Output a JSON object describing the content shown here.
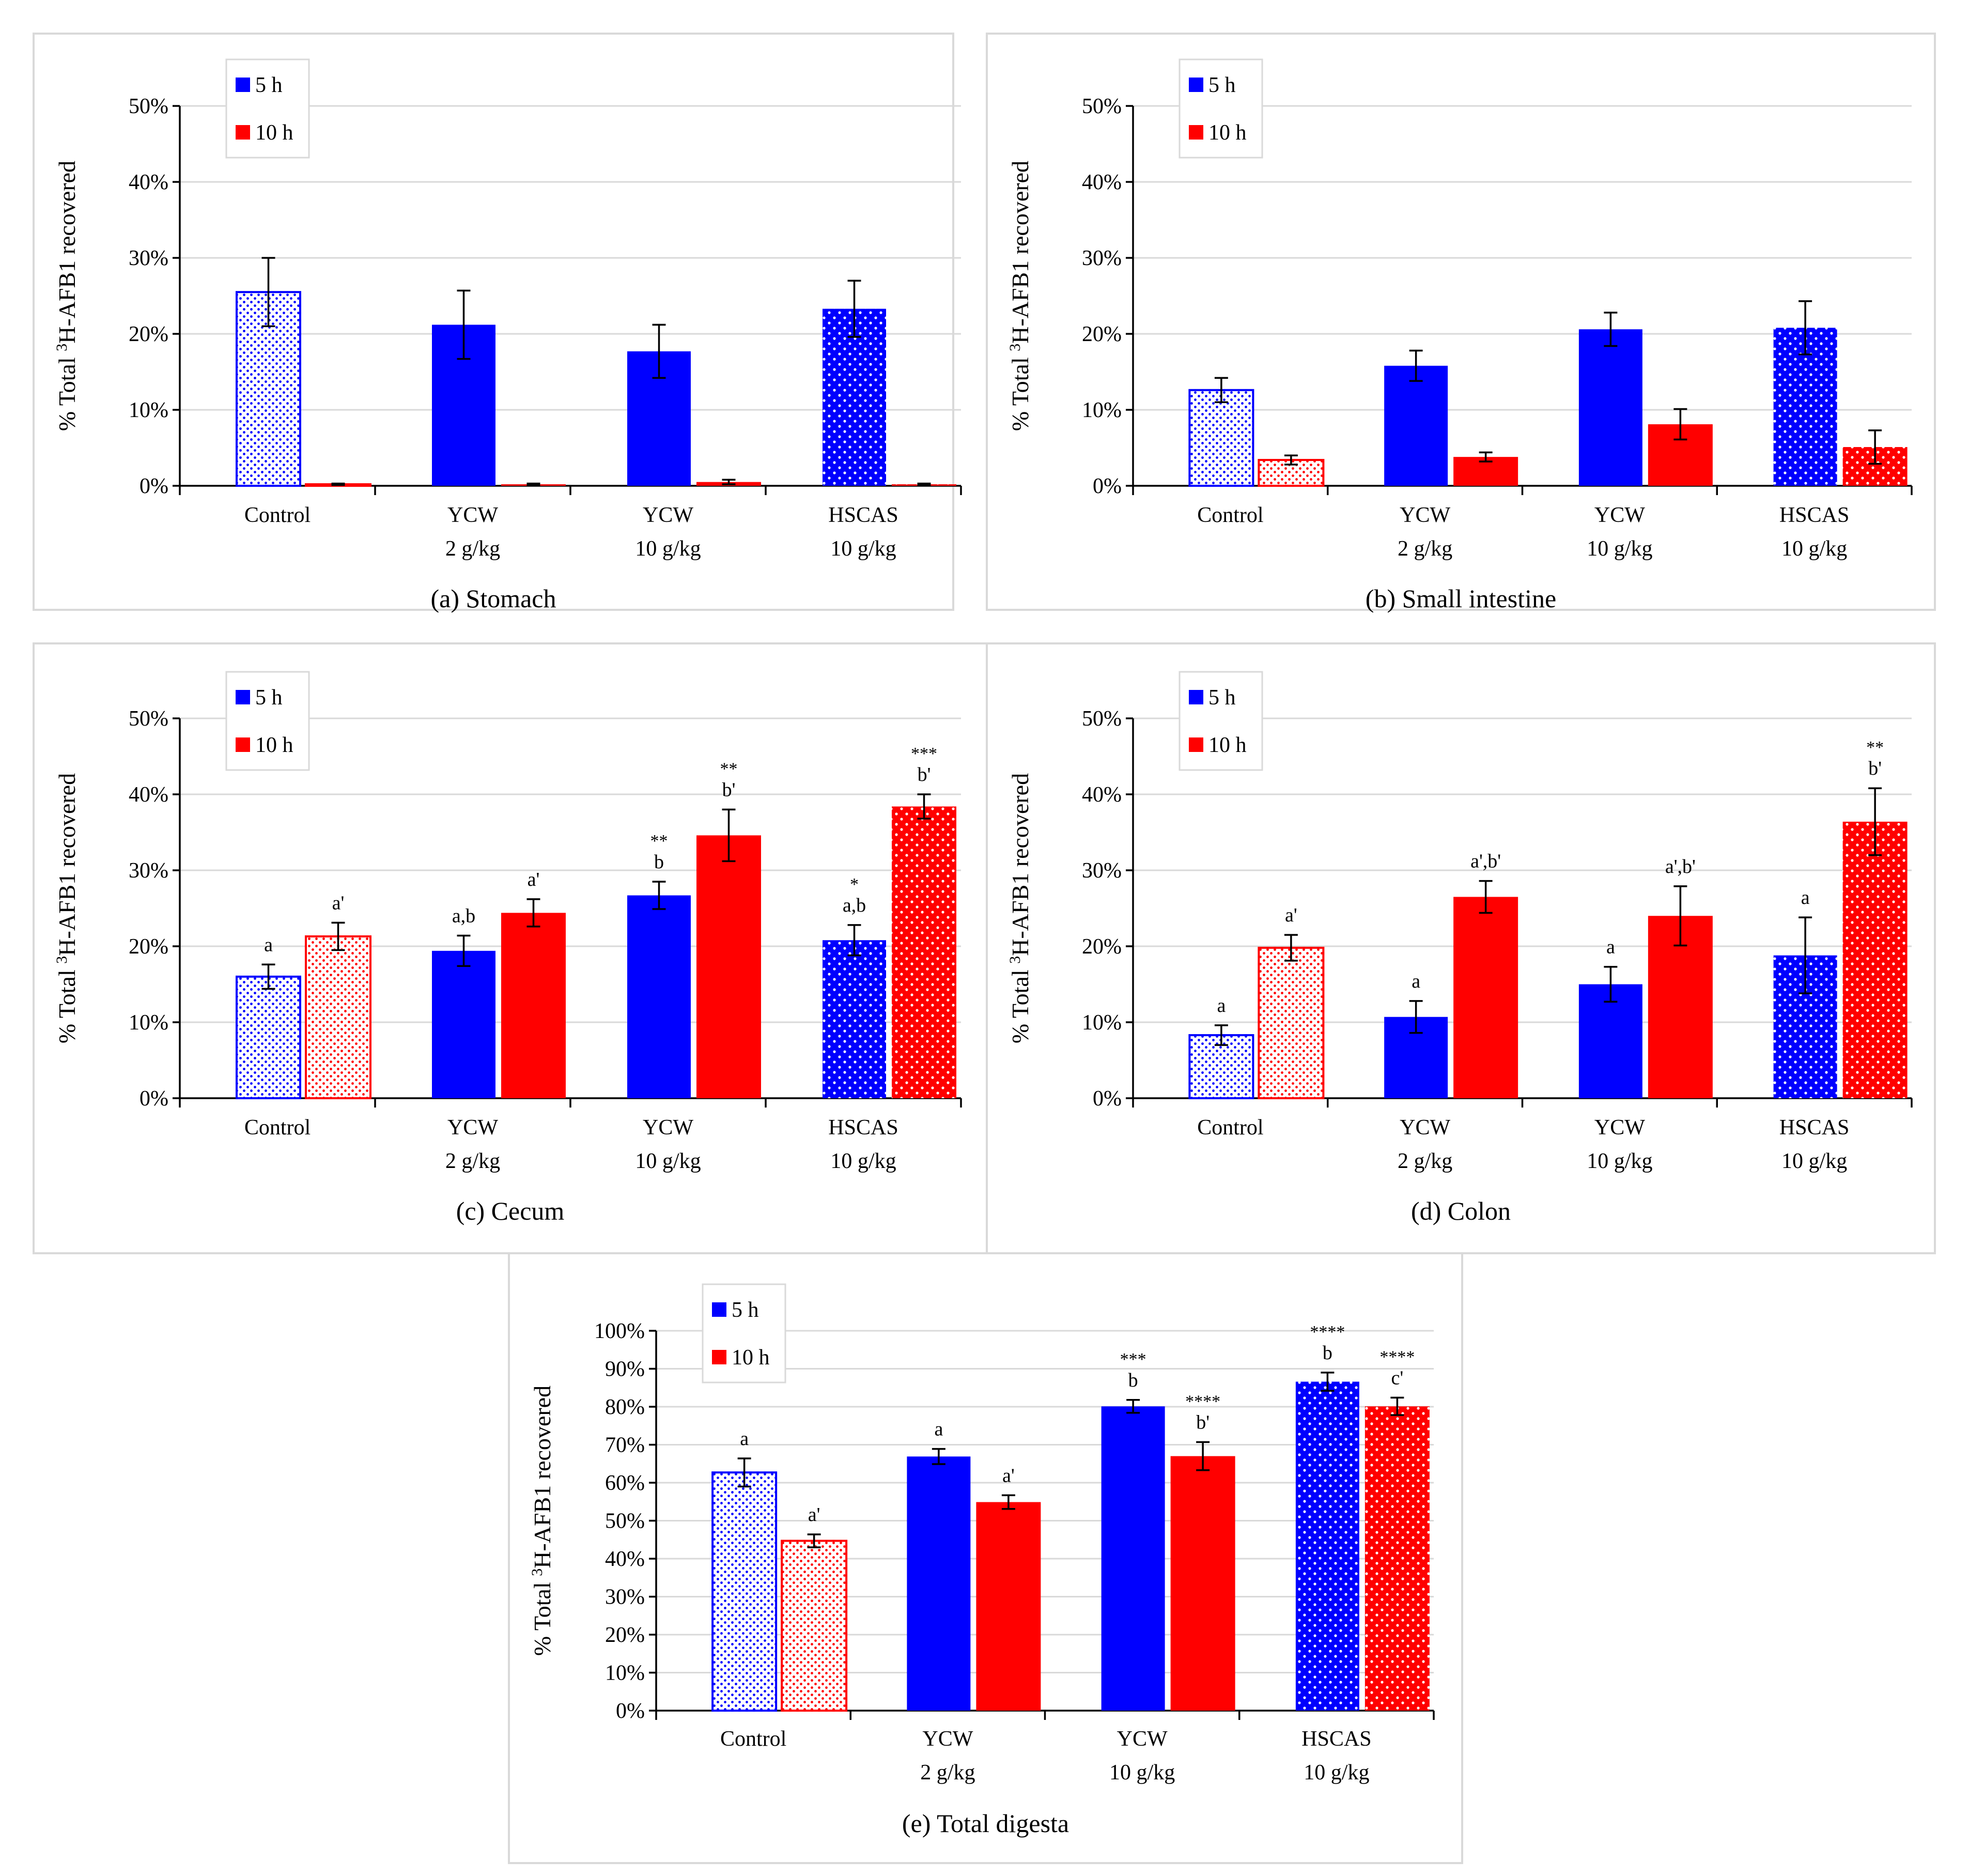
{
  "colors": {
    "5h": "#0000ff",
    "10h": "#ff0000",
    "grid": "#d9d9d9",
    "frame": "#d9d9d9"
  },
  "chart_data": [
    {
      "type": "bar",
      "title": "(a) Stomach",
      "ylabel": "% Total ³H-AFB1 recovered",
      "ylim": [
        0,
        50
      ],
      "yticks": [
        "0%",
        "10%",
        "20%",
        "30%",
        "40%",
        "50%"
      ],
      "categories": [
        [
          "Control"
        ],
        [
          "YCW",
          "2 g/kg"
        ],
        [
          "YCW",
          "10 g/kg"
        ],
        [
          "HSCAS",
          "10 g/kg"
        ]
      ],
      "legend": [
        "5 h",
        "10 h"
      ],
      "series": [
        {
          "name": "5 h",
          "values": [
            25.5,
            21.2,
            17.7,
            23.3
          ],
          "errors": [
            4.5,
            4.5,
            3.5,
            3.7
          ],
          "labels": [
            "",
            "",
            "",
            ""
          ],
          "stars": [
            "",
            "",
            "",
            ""
          ]
        },
        {
          "name": "10 h",
          "values": [
            0.2,
            0.2,
            0.5,
            0.2
          ],
          "errors": [
            0.1,
            0.1,
            0.3,
            0.1
          ],
          "labels": [
            "",
            "",
            "",
            ""
          ],
          "stars": [
            "",
            "",
            "",
            ""
          ]
        }
      ]
    },
    {
      "type": "bar",
      "title": "(b) Small intestine",
      "ylabel": "% Total ³H-AFB1 recovered",
      "ylim": [
        0,
        50
      ],
      "yticks": [
        "0%",
        "10%",
        "20%",
        "30%",
        "40%",
        "50%"
      ],
      "categories": [
        [
          "Control"
        ],
        [
          "YCW",
          "2 g/kg"
        ],
        [
          "YCW",
          "10 g/kg"
        ],
        [
          "HSCAS",
          "10 g/kg"
        ]
      ],
      "legend": [
        "5 h",
        "10 h"
      ],
      "series": [
        {
          "name": "5 h",
          "values": [
            12.6,
            15.8,
            20.6,
            20.8
          ],
          "errors": [
            1.6,
            2.0,
            2.2,
            3.5
          ],
          "labels": [
            "",
            "",
            "",
            ""
          ],
          "stars": [
            "",
            "",
            "",
            ""
          ]
        },
        {
          "name": "10 h",
          "values": [
            3.4,
            3.8,
            8.1,
            5.1
          ],
          "errors": [
            0.6,
            0.6,
            2.0,
            2.2
          ],
          "labels": [
            "",
            "",
            "",
            ""
          ],
          "stars": [
            "",
            "",
            "",
            ""
          ]
        }
      ]
    },
    {
      "type": "bar",
      "title": "(c) Cecum",
      "ylabel": "% Total ³H-AFB1 recovered",
      "ylim": [
        0,
        50
      ],
      "yticks": [
        "0%",
        "10%",
        "20%",
        "30%",
        "40%",
        "50%"
      ],
      "categories": [
        [
          "Control"
        ],
        [
          "YCW",
          "2 g/kg"
        ],
        [
          "YCW",
          "10 g/kg"
        ],
        [
          "HSCAS",
          "10 g/kg"
        ]
      ],
      "legend": [
        "5 h",
        "10 h"
      ],
      "series": [
        {
          "name": "5 h",
          "values": [
            16.0,
            19.4,
            26.7,
            20.8
          ],
          "errors": [
            1.6,
            2.0,
            1.8,
            2.0
          ],
          "labels": [
            "a",
            "a,b",
            "b",
            "a,b"
          ],
          "stars": [
            "",
            "",
            "**",
            "*"
          ]
        },
        {
          "name": "10 h",
          "values": [
            21.3,
            24.4,
            34.6,
            38.4
          ],
          "errors": [
            1.8,
            1.8,
            3.4,
            1.6
          ],
          "labels": [
            "a'",
            "a'",
            "b'",
            "b'"
          ],
          "stars": [
            "",
            "",
            "**",
            "***"
          ]
        }
      ]
    },
    {
      "type": "bar",
      "title": "(d) Colon",
      "ylabel": "% Total ³H-AFB1 recovered",
      "ylim": [
        0,
        50
      ],
      "yticks": [
        "0%",
        "10%",
        "20%",
        "30%",
        "40%",
        "50%"
      ],
      "categories": [
        [
          "Control"
        ],
        [
          "YCW",
          "2 g/kg"
        ],
        [
          "YCW",
          "10 g/kg"
        ],
        [
          "HSCAS",
          "10 g/kg"
        ]
      ],
      "legend": [
        "5 h",
        "10 h"
      ],
      "series": [
        {
          "name": "5 h",
          "values": [
            8.3,
            10.7,
            15.0,
            18.8
          ],
          "errors": [
            1.3,
            2.1,
            2.3,
            5.0
          ],
          "labels": [
            "a",
            "a",
            "a",
            "a"
          ],
          "stars": [
            "",
            "",
            "",
            ""
          ]
        },
        {
          "name": "10 h",
          "values": [
            19.8,
            26.5,
            24.0,
            36.4
          ],
          "errors": [
            1.7,
            2.1,
            3.9,
            4.4
          ],
          "labels": [
            "a'",
            "a',b'",
            "a',b'",
            "b'"
          ],
          "stars": [
            "",
            "",
            "",
            "**"
          ]
        }
      ]
    },
    {
      "type": "bar",
      "title": "(e) Total digesta",
      "ylabel": "% Total ³H-AFB1 recovered",
      "ylim": [
        0,
        100
      ],
      "yticks": [
        "0%",
        "10%",
        "20%",
        "30%",
        "40%",
        "50%",
        "60%",
        "70%",
        "80%",
        "90%",
        "100%"
      ],
      "categories": [
        [
          "Control"
        ],
        [
          "YCW",
          "2 g/kg"
        ],
        [
          "YCW",
          "10 g/kg"
        ],
        [
          "HSCAS",
          "10 g/kg"
        ]
      ],
      "legend": [
        "5 h",
        "10 h"
      ],
      "series": [
        {
          "name": "5 h",
          "values": [
            62.7,
            66.9,
            80.1,
            86.6
          ],
          "errors": [
            3.7,
            2.0,
            1.7,
            2.4
          ],
          "labels": [
            "a",
            "a",
            "b",
            "b"
          ],
          "stars": [
            "",
            "",
            "***",
            "****"
          ]
        },
        {
          "name": "10 h",
          "values": [
            44.7,
            54.9,
            67.0,
            80.1
          ],
          "errors": [
            1.7,
            1.8,
            3.7,
            2.3
          ],
          "labels": [
            "a'",
            "a'",
            "b'",
            "c'"
          ],
          "stars": [
            "",
            "",
            "****",
            "****"
          ]
        }
      ]
    }
  ]
}
